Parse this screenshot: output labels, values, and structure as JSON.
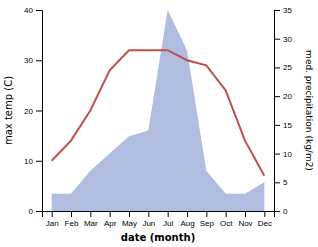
{
  "chart_data": {
    "type": "line",
    "categories": [
      "Jan",
      "Feb",
      "Mar",
      "Apr",
      "May",
      "Jun",
      "Jul",
      "Aug",
      "Sep",
      "Oct",
      "Nov",
      "Dec"
    ],
    "series": [
      {
        "type": "area",
        "axis": "y2",
        "color": "#b0bce0",
        "values": [
          3,
          3,
          7,
          10,
          13,
          14,
          35,
          28,
          7,
          3,
          3,
          5
        ]
      },
      {
        "type": "line",
        "color": "#c0504d",
        "values": [
          10,
          14,
          20,
          28,
          32,
          32,
          32,
          30,
          29,
          24,
          14,
          7
        ]
      }
    ],
    "xlabel": "date (month)",
    "ylabel": "max temp (C)",
    "y2label": "med. precipitation (kg/m2)",
    "ylim": [
      0,
      40
    ],
    "yticks": [
      0,
      10,
      20,
      30,
      40
    ],
    "y2lim": [
      0,
      35
    ],
    "y2ticks": [
      0,
      5,
      10,
      15,
      20,
      25,
      30,
      35
    ],
    "grid": false
  }
}
